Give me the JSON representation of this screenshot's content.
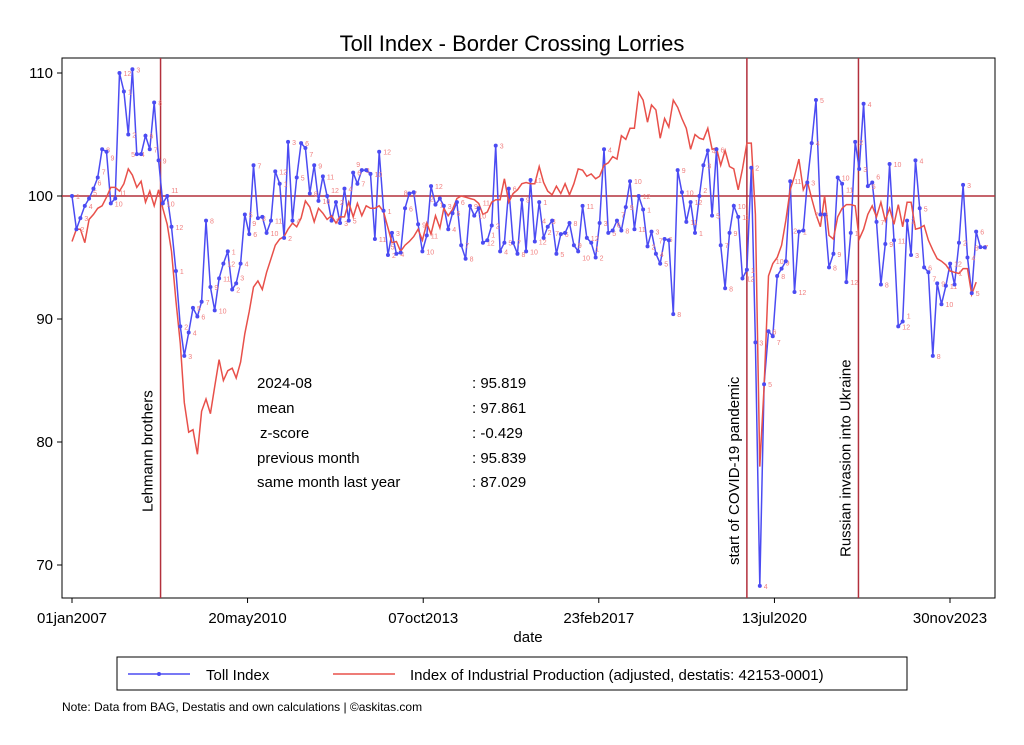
{
  "chart_data": {
    "type": "line",
    "title": "Toll Index - Border Crossing Lorries",
    "xlabel": "date",
    "ylabel": "",
    "x_start": "2007-01",
    "x_frequency": "monthly",
    "ylim": [
      66,
      111
    ],
    "yticks": [
      70,
      80,
      90,
      100,
      110
    ],
    "xticks": [
      {
        "date": "2007-01-01",
        "label": "01jan2007"
      },
      {
        "date": "2010-05-20",
        "label": "20may2010"
      },
      {
        "date": "2013-10-07",
        "label": "07oct2013"
      },
      {
        "date": "2017-02-23",
        "label": "23feb2017"
      },
      {
        "date": "2020-07-13",
        "label": "13jul2020"
      },
      {
        "date": "2023-11-30",
        "label": "30nov2023"
      }
    ],
    "reference_line": 100,
    "grid": false,
    "legend_position": "bottom",
    "series": [
      {
        "name": "Toll Index",
        "color": "#4b4bf2",
        "markers": true,
        "point_labels": "month number",
        "values": [
          100,
          97.3,
          98.2,
          99.2,
          99.8,
          100.6,
          101.5,
          103.8,
          103.6,
          99.4,
          99.8,
          110,
          108.5,
          105,
          110.3,
          103.4,
          103.4,
          104.9,
          103.8,
          107.6,
          102.9,
          99.4,
          100,
          97.5,
          93.9,
          89.4,
          87,
          88.9,
          90.9,
          90.2,
          91.4,
          98,
          92.6,
          90.7,
          93.3,
          94.5,
          95.5,
          92.4,
          92.9,
          94.5,
          98.5,
          96.9,
          102.5,
          98.2,
          98.3,
          97,
          98,
          102,
          101,
          96.6,
          104.4,
          98,
          101.5,
          104.3,
          103.9,
          100.2,
          102.5,
          99.6,
          101.6,
          100,
          98,
          99.5,
          97.8,
          100.6,
          98,
          101.9,
          101,
          102.1,
          102.1,
          101.8,
          96.5,
          103.6,
          98.8,
          95.2,
          97,
          95.3,
          95.4,
          99,
          100.2,
          100.3,
          97.7,
          95.5,
          96.8,
          100.8,
          99.3,
          99.8,
          99.2,
          97.3,
          98.6,
          99.5,
          96,
          94.9,
          99.2,
          98.4,
          99,
          96.2,
          96.4,
          97.6,
          104.1,
          95.5,
          96.2,
          100.6,
          96.2,
          95.3,
          99.7,
          95.5,
          101.3,
          96.3,
          99.5,
          96.6,
          97.5,
          98,
          95.3,
          96.9,
          97,
          97.8,
          96,
          95.5,
          99.2,
          96.6,
          96.2,
          95,
          97.8,
          103.8,
          97,
          97.2,
          98,
          97.2,
          99.1,
          101.2,
          97.3,
          100,
          98.9,
          95.9,
          97.1,
          95.3,
          94.5,
          96.5,
          96.4,
          90.4,
          102.1,
          100.3,
          97.9,
          99.5,
          97,
          100,
          102.5,
          103.7,
          98.4,
          103.8,
          96,
          92.5,
          97,
          99.2,
          98.3,
          93.3,
          94,
          102.3,
          88.1,
          68.3,
          84.7,
          89,
          88.6,
          93.5,
          94.1,
          94.7,
          101.2,
          92.2,
          97.1,
          97.2,
          101.1,
          104.3,
          107.8,
          98.5,
          98.5,
          94.2,
          95.3,
          101.5,
          101,
          93,
          97,
          104.4,
          102.2,
          107.5,
          100.8,
          101.1,
          97.9,
          92.8,
          96.1,
          102.6,
          96.4,
          89.4,
          89.8,
          98,
          95.2,
          102.9,
          99,
          94.2,
          93.8,
          87,
          92.9,
          91.2,
          92.7,
          94.5,
          92.8,
          96.2,
          100.9,
          95,
          92.1,
          97.1,
          95.839,
          95.819
        ]
      },
      {
        "name": "Index of Industrial Production (adjusted, destatis: 42153-0001)",
        "color": "#e8504a",
        "markers": false,
        "values": [
          96.3,
          97.3,
          97.3,
          96.2,
          98.1,
          98.5,
          99,
          99.2,
          99.9,
          100.7,
          100.7,
          100.4,
          101,
          102.2,
          101.7,
          100.7,
          101.2,
          99.5,
          100.4,
          99.2,
          100.5,
          99,
          97.7,
          95.5,
          91.5,
          88,
          83.2,
          80.8,
          81,
          79,
          82.5,
          83.5,
          82.3,
          84.5,
          86.7,
          85,
          85.8,
          86,
          85.2,
          86.5,
          88.8,
          90.6,
          92.6,
          93.1,
          92.4,
          93.8,
          94.9,
          96,
          96.5,
          96.7,
          97.3,
          97.8,
          97.5,
          98.2,
          99.6,
          99.1,
          97.9,
          99,
          98.6,
          98.1,
          98.4,
          97.8,
          98.3,
          98.3,
          99.5,
          98.3,
          99.4,
          98.4,
          99.2,
          99,
          99,
          99.2,
          98.7,
          97.4,
          96.2,
          96.3,
          95.5,
          96,
          96.3,
          96.7,
          97.3,
          96.4,
          97.8,
          96.9,
          98.4,
          97.4,
          99,
          98.4,
          98.9,
          99.8,
          100,
          99.9,
          99.8,
          99.7,
          99.4,
          98.5,
          98.7,
          99.5,
          99.7,
          99.7,
          101.4,
          99.5,
          100.2,
          100.5,
          101,
          101.1,
          101,
          101,
          102.4,
          101.1,
          100.4,
          100.1,
          100.8,
          100.2,
          101,
          100.1,
          101,
          102.2,
          102.1,
          101.6,
          101.8,
          101.4,
          101.6,
          102.5,
          102.7,
          103.2,
          103,
          104.9,
          104.6,
          105.5,
          105.5,
          108.4,
          107.8,
          106,
          107.4,
          107,
          104.7,
          106.3,
          105.6,
          107.8,
          107.2,
          106.3,
          105.5,
          103.8,
          105,
          104.7,
          104.6,
          105.5,
          103.8,
          103.9,
          102.5,
          103.7,
          102.4,
          102.2,
          100.5,
          102.2,
          104.3,
          104.3,
          98.5,
          78,
          84.5,
          93.5,
          94.5,
          95,
          96,
          98,
          100.5,
          101.6,
          103,
          100.5,
          101.2,
          99.8,
          98.5,
          97.5,
          100,
          96.8,
          96.5,
          98.3,
          99,
          99.3,
          99.3,
          99.2,
          96.5,
          97.3,
          98.5,
          99.2,
          98.3,
          99.5,
          98,
          99,
          97.7,
          99.3,
          97.5,
          99.5,
          99.5,
          97.3,
          97.4,
          97.6,
          96.4,
          95.6,
          94.9,
          94.7,
          94.4,
          93.9,
          93.8,
          93.7,
          94.1,
          94.1,
          92,
          93
        ]
      }
    ],
    "annotations": [
      {
        "date": "2008-09-15",
        "label": "Lehmann brothers"
      },
      {
        "date": "2020-01-01",
        "label": "start of COVID-19 pandemic"
      },
      {
        "date": "2022-02-24",
        "label": "Russian invasion into Ukraine"
      }
    ],
    "stats": [
      {
        "label": "2024-08",
        "value": ": 95.819"
      },
      {
        "label": "mean",
        "value": ": 97.861"
      },
      {
        "label": "z-score",
        "value": ": -0.429"
      },
      {
        "label": "previous month",
        "value": ": 95.839"
      },
      {
        "label": "same month last year",
        "value": ": 87.029"
      }
    ],
    "note": "Note: Data from BAG, Destatis and own calculations | ©askitas.com",
    "line_color_events": "#b3303c"
  }
}
